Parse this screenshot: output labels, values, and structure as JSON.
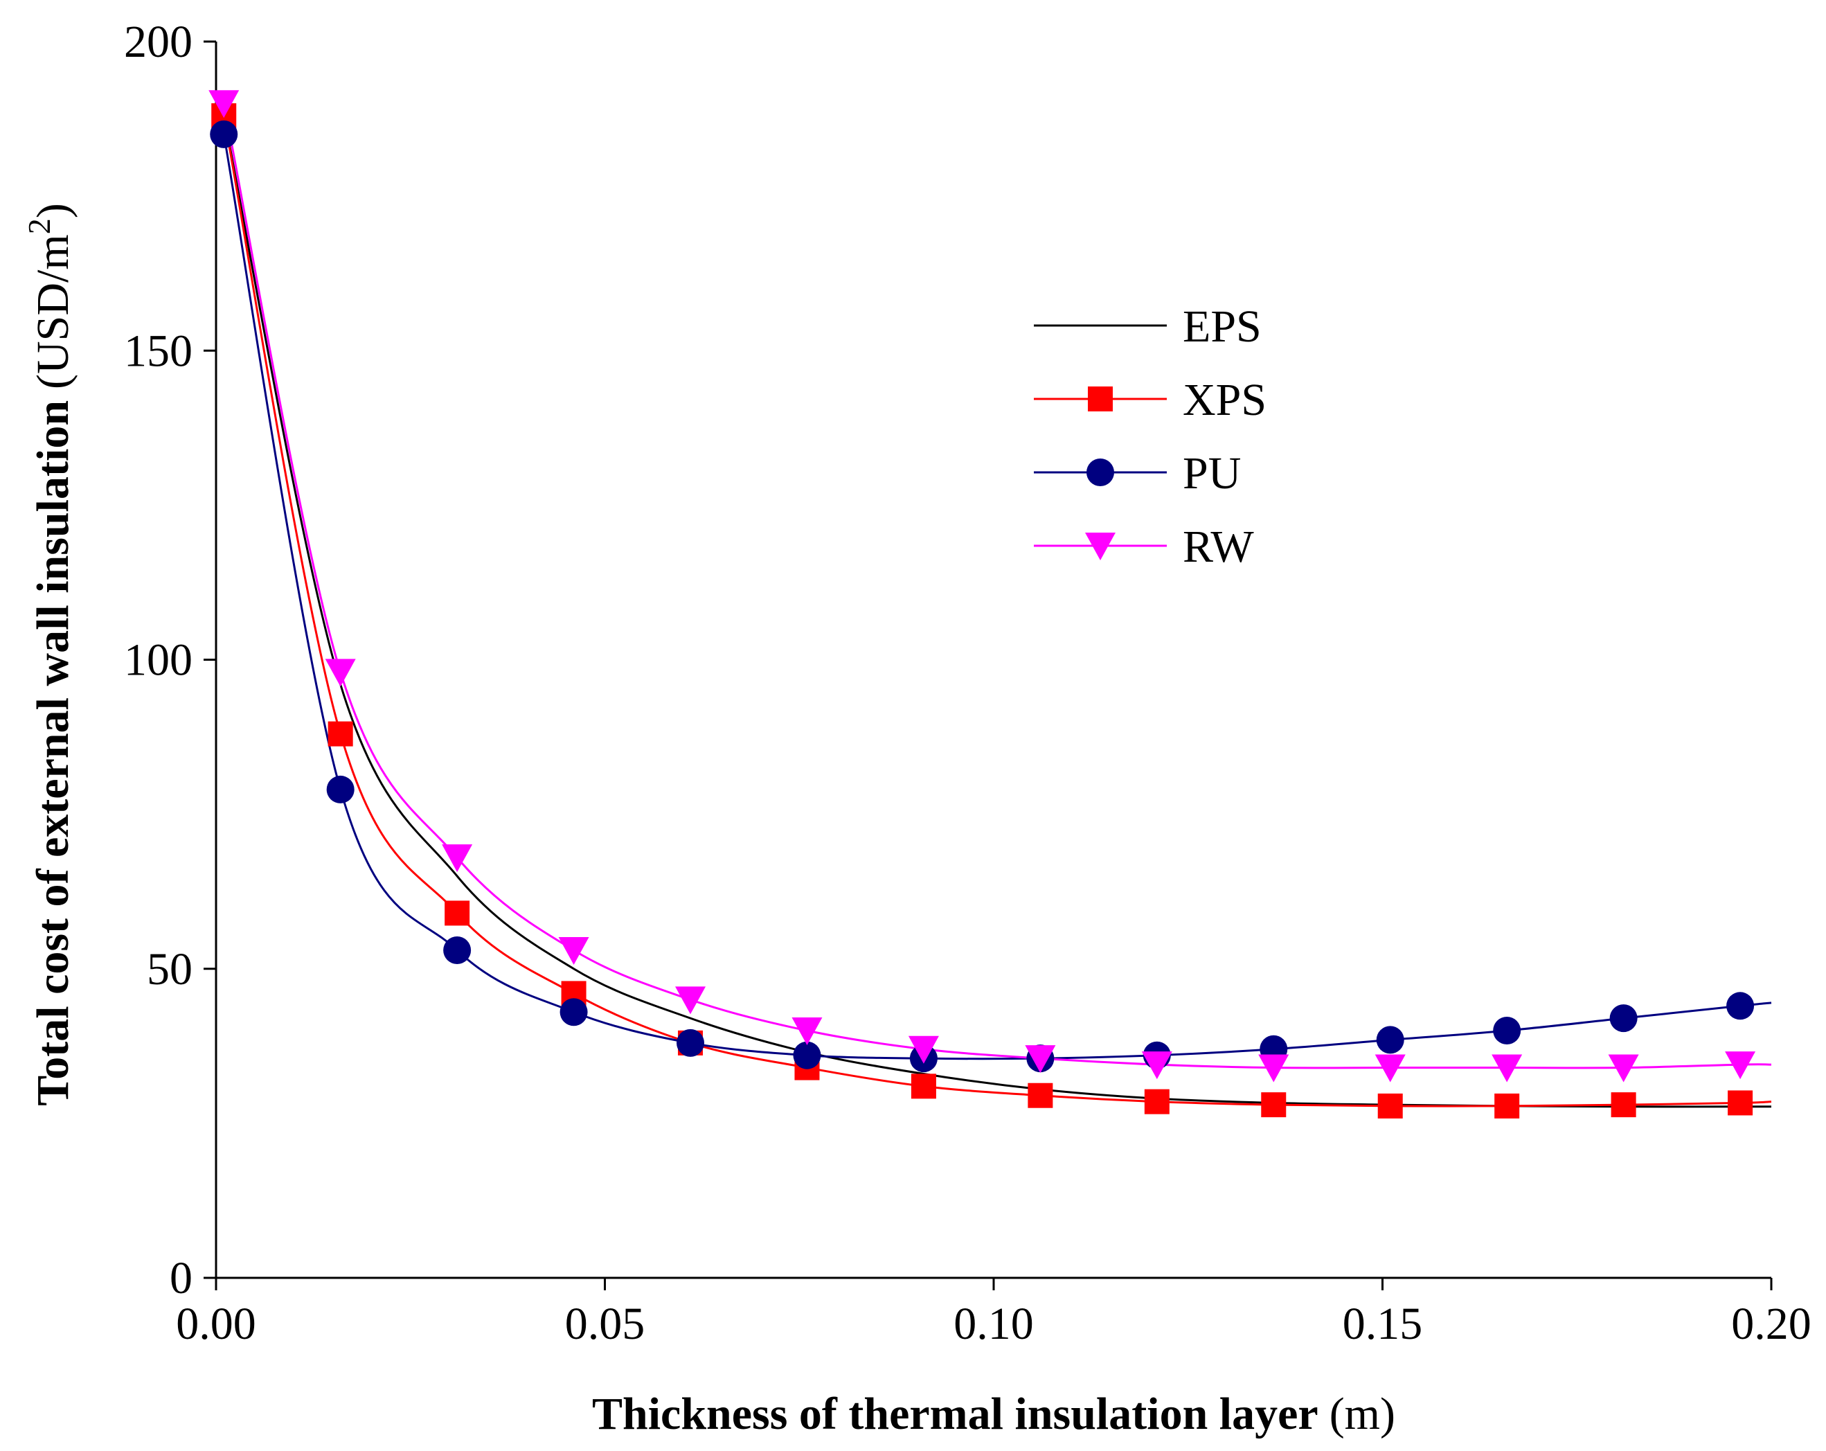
{
  "chart_data": {
    "type": "line",
    "title": "",
    "xlabel": "Thickness of thermal insulation layer",
    "xlabel_unit": "(m)",
    "ylabel": "Total cost of  external wall insulation",
    "ylabel_unit_prefix": "(USD/m",
    "ylabel_unit_sup": "2",
    "ylabel_unit_suffix": ")",
    "xlim": [
      0,
      0.2
    ],
    "ylim": [
      0,
      200
    ],
    "x_ticks": [
      0.0,
      0.05,
      0.1,
      0.15,
      0.2
    ],
    "x_tick_labels": [
      "0.00",
      "0.05",
      "0.10",
      "0.15",
      "0.20"
    ],
    "y_ticks": [
      0,
      50,
      100,
      150,
      200
    ],
    "y_tick_labels": [
      "0",
      "50",
      "100",
      "150",
      "200"
    ],
    "legend_position": "upper-right-center",
    "series": [
      {
        "name": "EPS",
        "color": "#000000",
        "marker": "none",
        "x": [
          0.001,
          0.016,
          0.031,
          0.046,
          0.061,
          0.076,
          0.091,
          0.106,
          0.121,
          0.136,
          0.151,
          0.166,
          0.181,
          0.196,
          0.2
        ],
        "values": [
          188,
          96,
          65,
          50,
          42,
          36.5,
          33,
          30.5,
          29,
          28.3,
          28,
          27.8,
          27.7,
          27.7,
          27.7
        ]
      },
      {
        "name": "XPS",
        "color": "#ff0000",
        "marker": "square",
        "x": [
          0.001,
          0.016,
          0.031,
          0.046,
          0.061,
          0.076,
          0.091,
          0.106,
          0.121,
          0.136,
          0.151,
          0.166,
          0.181,
          0.196,
          0.2
        ],
        "values": [
          188,
          88,
          59,
          46,
          38,
          34,
          31,
          29.5,
          28.5,
          28,
          27.8,
          27.8,
          28,
          28.3,
          28.5
        ]
      },
      {
        "name": "PU",
        "color": "#000080",
        "marker": "circle",
        "x": [
          0.001,
          0.016,
          0.031,
          0.046,
          0.061,
          0.076,
          0.091,
          0.106,
          0.121,
          0.136,
          0.151,
          0.166,
          0.181,
          0.196,
          0.2
        ],
        "values": [
          185,
          79,
          53,
          43,
          38,
          36,
          35.5,
          35.5,
          36,
          37,
          38.5,
          40,
          42,
          44,
          44.5
        ]
      },
      {
        "name": "RW",
        "color": "#ff00ff",
        "marker": "triangle-down",
        "x": [
          0.001,
          0.016,
          0.031,
          0.046,
          0.061,
          0.076,
          0.091,
          0.106,
          0.121,
          0.136,
          0.151,
          0.166,
          0.181,
          0.196,
          0.2
        ],
        "values": [
          190,
          98,
          68,
          53,
          45,
          40,
          37,
          35.5,
          34.5,
          34,
          34,
          34,
          34,
          34.5,
          34.5
        ]
      }
    ]
  }
}
